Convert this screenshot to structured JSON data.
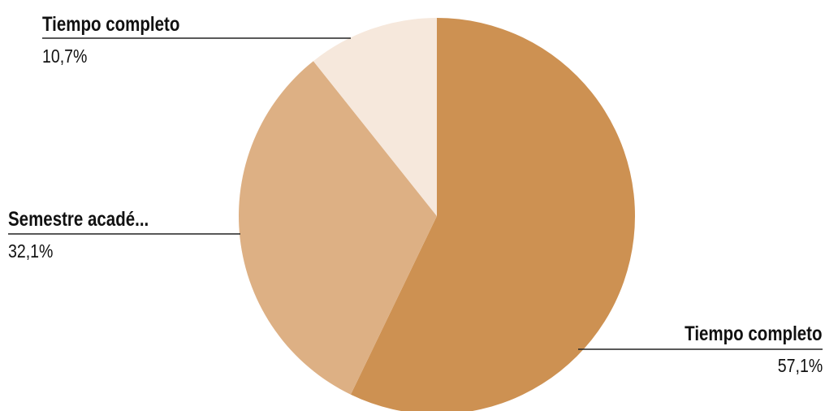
{
  "chart_data": {
    "type": "pie",
    "title": "",
    "slices": [
      {
        "label": "Tiempo completo",
        "value": 57.1,
        "value_label": "57,1%",
        "color": "#cd9152"
      },
      {
        "label": "Semestre acadé...",
        "value": 32.1,
        "value_label": "32,1%",
        "color": "#ddb084"
      },
      {
        "label": "Tiempo completo",
        "value": 10.7,
        "value_label": "10,7%",
        "color": "#f6e8dc"
      }
    ],
    "start": "top",
    "direction": "clockwise",
    "legend": "none"
  }
}
